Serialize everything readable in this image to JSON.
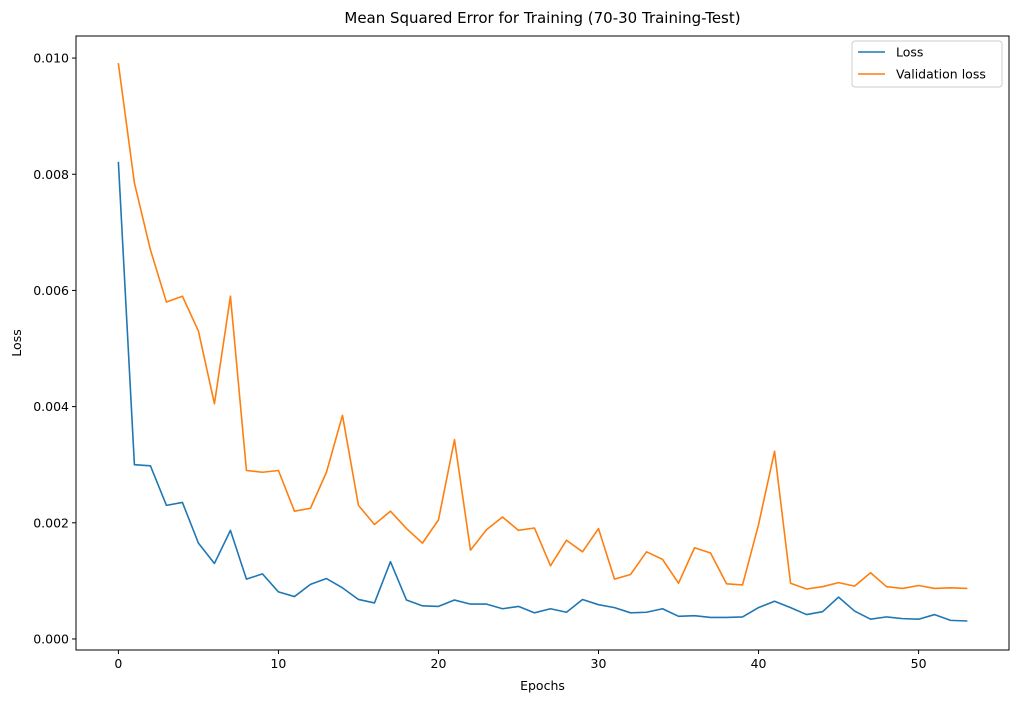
{
  "chart_data": {
    "type": "line",
    "title": "Mean Squared Error for Training (70-30 Training-Test)",
    "xlabel": "Epochs",
    "ylabel": "Loss",
    "xlim": [
      -2.65,
      55.65
    ],
    "ylim": [
      -0.00019,
      0.01038
    ],
    "xticks": [
      0,
      10,
      20,
      30,
      40,
      50
    ],
    "yticks": [
      0.0,
      0.002,
      0.004,
      0.006,
      0.008,
      0.01
    ],
    "ytick_labels": [
      "0.000",
      "0.002",
      "0.004",
      "0.006",
      "0.008",
      "0.010"
    ],
    "grid": false,
    "legend_position": "top-right",
    "series": [
      {
        "name": "Loss",
        "color": "#1f77b4",
        "x": [
          0,
          1,
          2,
          3,
          4,
          5,
          6,
          7,
          8,
          9,
          10,
          11,
          12,
          13,
          14,
          15,
          16,
          17,
          18,
          19,
          20,
          21,
          22,
          23,
          24,
          25,
          26,
          27,
          28,
          29,
          30,
          31,
          32,
          33,
          34,
          35,
          36,
          37,
          38,
          39,
          40,
          41,
          42,
          43,
          44,
          45,
          46,
          47,
          48,
          49,
          50,
          51,
          52,
          53
        ],
        "values": [
          0.0082,
          0.003,
          0.00298,
          0.0023,
          0.00235,
          0.00165,
          0.0013,
          0.00187,
          0.00103,
          0.00112,
          0.00081,
          0.00073,
          0.00094,
          0.00104,
          0.00088,
          0.00068,
          0.00062,
          0.00133,
          0.00067,
          0.00057,
          0.00056,
          0.00067,
          0.0006,
          0.0006,
          0.00052,
          0.00056,
          0.00045,
          0.00052,
          0.00046,
          0.00068,
          0.00059,
          0.00054,
          0.00045,
          0.00046,
          0.00052,
          0.00039,
          0.0004,
          0.00037,
          0.00037,
          0.00038,
          0.00054,
          0.00065,
          0.00054,
          0.00042,
          0.00047,
          0.00072,
          0.00048,
          0.00034,
          0.00038,
          0.00035,
          0.00034,
          0.00042,
          0.00032,
          0.00031
        ]
      },
      {
        "name": "Validation loss",
        "color": "#ff7f0e",
        "x": [
          0,
          1,
          2,
          3,
          4,
          5,
          6,
          7,
          8,
          9,
          10,
          11,
          12,
          13,
          14,
          15,
          16,
          17,
          18,
          19,
          20,
          21,
          22,
          23,
          24,
          25,
          26,
          27,
          28,
          29,
          30,
          31,
          32,
          33,
          34,
          35,
          36,
          37,
          38,
          39,
          40,
          41,
          42,
          43,
          44,
          45,
          46,
          47,
          48,
          49,
          50,
          51,
          52,
          53
        ],
        "values": [
          0.0099,
          0.00785,
          0.0067,
          0.0058,
          0.0059,
          0.0053,
          0.00405,
          0.0059,
          0.0029,
          0.00287,
          0.0029,
          0.0022,
          0.00225,
          0.00287,
          0.00385,
          0.0023,
          0.00197,
          0.0022,
          0.0019,
          0.00165,
          0.00205,
          0.00343,
          0.00153,
          0.00188,
          0.0021,
          0.00187,
          0.00191,
          0.00126,
          0.0017,
          0.0015,
          0.0019,
          0.00103,
          0.00111,
          0.0015,
          0.00137,
          0.00096,
          0.00157,
          0.00148,
          0.00095,
          0.00093,
          0.00197,
          0.00323,
          0.00096,
          0.00086,
          0.0009,
          0.00097,
          0.00091,
          0.00114,
          0.0009,
          0.00087,
          0.00092,
          0.00087,
          0.00088,
          0.00087
        ]
      }
    ]
  }
}
